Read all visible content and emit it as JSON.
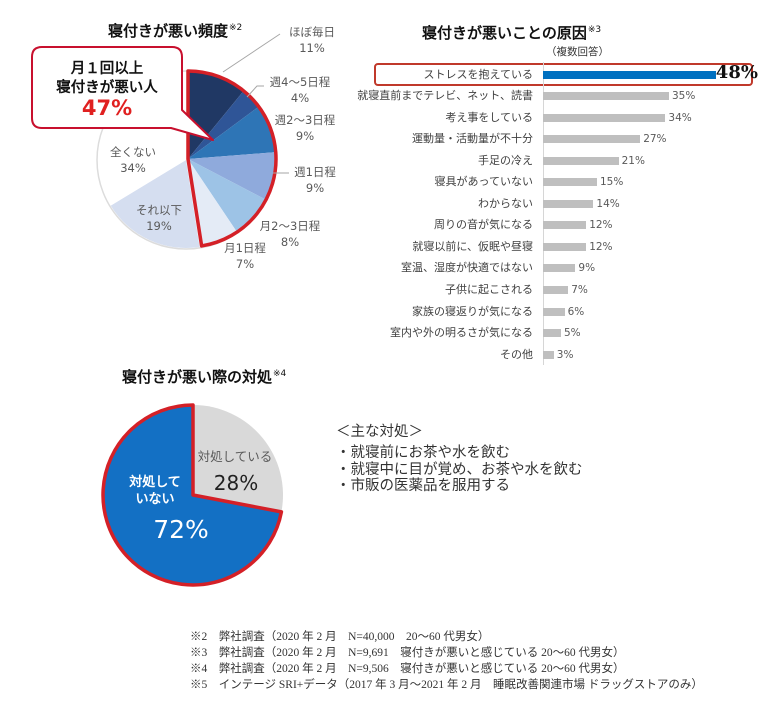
{
  "chart_data": [
    {
      "type": "pie",
      "title": "寝付きが悪い頻度",
      "title_note": "※2",
      "slices": [
        {
          "label": "ほぼ毎日",
          "value": 11,
          "value_label": "11%",
          "color": "#203864",
          "highlight": true
        },
        {
          "label": "週4～5日程",
          "value": 4,
          "value_label": "4%",
          "color": "#2f5597",
          "highlight": true
        },
        {
          "label": "週2～3日程",
          "value": 9,
          "value_label": "9%",
          "color": "#2e75b6",
          "highlight": true
        },
        {
          "label": "週1日程",
          "value": 9,
          "value_label": "9%",
          "color": "#8faadc",
          "highlight": true
        },
        {
          "label": "月2～3日程",
          "value": 8,
          "value_label": "8%",
          "color": "#9dc3e6",
          "highlight": true
        },
        {
          "label": "月1日程",
          "value": 7,
          "value_label": "7%",
          "color": "#e4ebf6",
          "highlight": true
        },
        {
          "label": "それ以下",
          "value": 19,
          "value_label": "19%",
          "color": "#d5def0",
          "highlight": false
        },
        {
          "label": "全くない",
          "value": 34,
          "value_label": "34%",
          "color": "#ffffff",
          "highlight": false
        }
      ],
      "highlight_color": "#d42027",
      "callout": {
        "line1": "月１回以上",
        "line2": "寝付きが悪い人",
        "value": "47%",
        "value_color": "#e02020",
        "border_color": "#c8102e"
      }
    },
    {
      "type": "bar",
      "orientation": "horizontal",
      "title": "寝付きが悪いことの原因",
      "title_note": "※3",
      "subtitle": "（複数回答）",
      "categories": [
        "ストレスを抱えている",
        "就寝直前までテレビ、ネット、読書",
        "考え事をしている",
        "運動量・活動量が不十分",
        "手足の冷え",
        "寝具があっていない",
        "わからない",
        "周りの音が気になる",
        "就寝以前に、仮眠や昼寝",
        "室温、湿度が快適ではない",
        "子供に起こされる",
        "家族の寝返りが気になる",
        "室内や外の明るさが気になる",
        "その他"
      ],
      "values": [
        48,
        35,
        34,
        27,
        21,
        15,
        14,
        12,
        12,
        9,
        7,
        6,
        5,
        3
      ],
      "value_labels": [
        "48%",
        "35%",
        "34%",
        "27%",
        "21%",
        "15%",
        "14%",
        "12%",
        "12%",
        "9%",
        "7%",
        "6%",
        "5%",
        "3%"
      ],
      "unit": "%",
      "highlight_index": 0,
      "highlight_color": "#0070c0",
      "bar_color": "#bfbfbf",
      "xlim": [
        0,
        50
      ]
    },
    {
      "type": "pie",
      "title": "寝付きが悪い際の対処",
      "title_note": "※4",
      "slices": [
        {
          "label": "対処している",
          "value": 28,
          "value_label": "28%",
          "color": "#d9d9d9",
          "highlight": false
        },
        {
          "label": "対処していない",
          "label_lines": [
            "対処して",
            "いない"
          ],
          "value": 72,
          "value_label": "72%",
          "color": "#1370c4",
          "highlight": true
        }
      ],
      "highlight_color": "#d42027"
    }
  ],
  "remedies": {
    "heading": "＜主な対処＞",
    "items": [
      "・就寝前にお茶や水を飲む",
      "・就寝中に目が覚め、お茶や水を飲む",
      "・市販の医薬品を服用する"
    ]
  },
  "footnotes": [
    "※2　弊社調査（2020 年 2 月　N=40,000　20～60 代男女）",
    "※3　弊社調査（2020 年 2 月　N=9,691　寝付きが悪いと感じている 20～60 代男女）",
    "※4　弊社調査（2020 年 2 月　N=9,506　寝付きが悪いと感じている 20～60 代男女）",
    "※5　インテージ SRI+データ（2017 年 3 月～2021 年 2 月　睡眠改善関連市場 ドラッグストアのみ）"
  ]
}
